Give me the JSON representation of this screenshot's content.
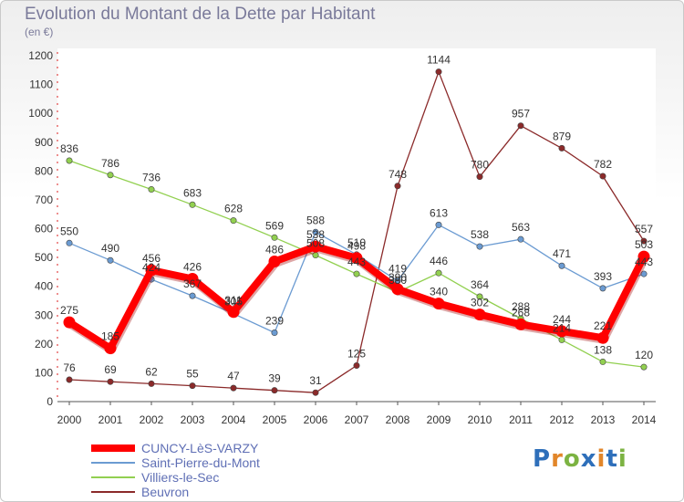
{
  "title": "Evolution du Montant de la Dette par Habitant",
  "unit": "(en €)",
  "logo": {
    "text": "Proxiti",
    "colors": [
      "#2e6fba",
      "#e2862a",
      "#7cb342",
      "#2e6fba",
      "#e2862a",
      "#2e6fba",
      "#7cb342"
    ]
  },
  "chart_data": {
    "type": "line",
    "title": "Evolution du Montant de la Dette par Habitant",
    "ylabel": "(en €)",
    "xlabel": "",
    "x": [
      2000,
      2001,
      2002,
      2003,
      2004,
      2005,
      2006,
      2007,
      2008,
      2009,
      2010,
      2011,
      2012,
      2013,
      2014
    ],
    "ylim": [
      0,
      1200
    ],
    "yticks": [
      0,
      100,
      200,
      300,
      400,
      500,
      600,
      700,
      800,
      900,
      1000,
      1100,
      1200
    ],
    "grid": false,
    "legend_position": "bottom",
    "series": [
      {
        "name": "CUNCY-LèS-VARZY",
        "color": "#ff0000",
        "values": [
          275,
          185,
          456,
          426,
          311,
          486,
          538,
          498,
          390,
          340,
          302,
          268,
          244,
          221,
          503
        ],
        "labels": [
          "275",
          "185",
          "456",
          "426",
          "311",
          "486",
          "538",
          "498",
          "390",
          "340",
          "302",
          "268",
          "244",
          "221",
          "503"
        ]
      },
      {
        "name": "Saint-Pierre-du-Mont",
        "color": "#6b9bd2",
        "values": [
          550,
          490,
          424,
          367,
          305,
          239,
          588,
          510,
          419,
          613,
          538,
          563,
          471,
          393,
          443
        ],
        "labels": [
          "550",
          "490",
          "424",
          "367",
          "305",
          "239",
          "588",
          "510",
          "419",
          "613",
          "538",
          "563",
          "471",
          "393",
          "443"
        ]
      },
      {
        "name": "Villiers-le-Sec",
        "color": "#92d050",
        "values": [
          836,
          786,
          736,
          683,
          628,
          569,
          508,
          443,
          380,
          446,
          364,
          288,
          214,
          138,
          120
        ],
        "labels": [
          "836",
          "786",
          "736",
          "683",
          "628",
          "569",
          "508",
          "443",
          "380",
          "446",
          "364",
          "288",
          "214",
          "138",
          "120"
        ]
      },
      {
        "name": "Beuvron",
        "color": "#8b2a2a",
        "values": [
          76,
          69,
          62,
          55,
          47,
          39,
          31,
          125,
          748,
          1144,
          780,
          957,
          879,
          782,
          557
        ],
        "labels": [
          "76",
          "69",
          "62",
          "55",
          "47",
          "39",
          "31",
          "125",
          "748",
          "1144",
          "780",
          "957",
          "879",
          "782",
          "557"
        ]
      }
    ]
  }
}
